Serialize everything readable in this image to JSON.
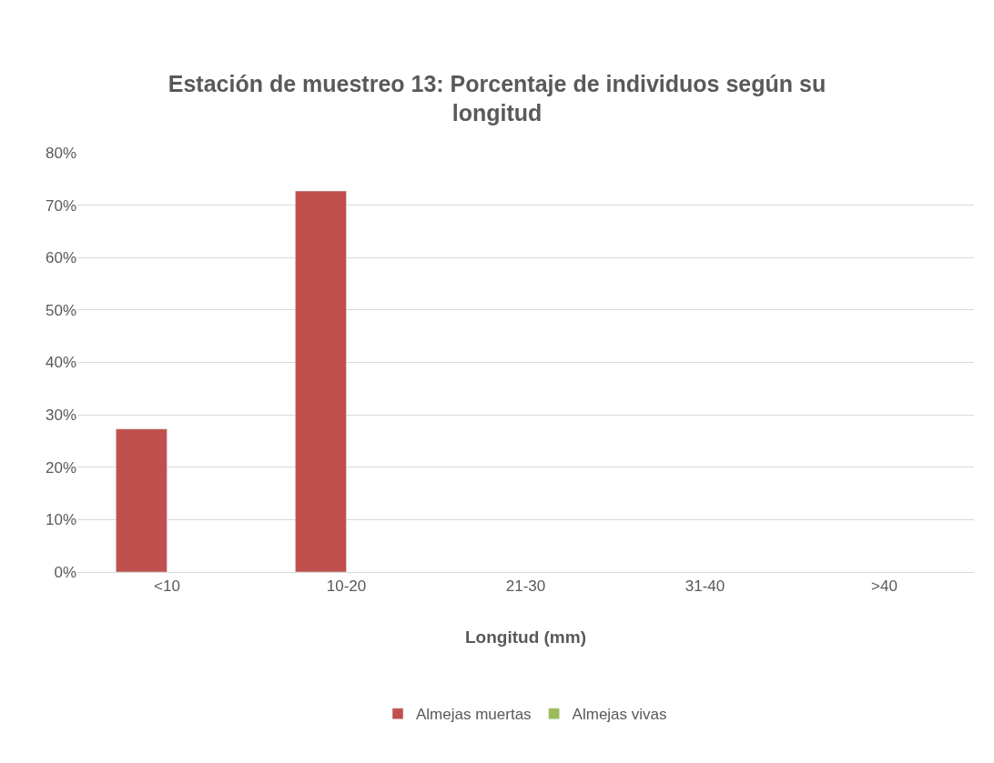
{
  "chart_data": {
    "type": "bar",
    "title": "Estación de muestreo 13: Porcentaje de individuos según su longitud",
    "xlabel": "Longitud (mm)",
    "categories": [
      "<10",
      "10-20",
      "21-30",
      "31-40",
      ">40"
    ],
    "series": [
      {
        "name": "Almejas muertas",
        "color": "#c0504d",
        "values": [
          27.3,
          72.7,
          null,
          null,
          null
        ]
      },
      {
        "name": "Almejas vivas",
        "color": "#9bbb59",
        "values": [
          null,
          null,
          null,
          null,
          null
        ]
      }
    ],
    "ylim": [
      0,
      80
    ],
    "yticks": [
      {
        "value": 0,
        "label": "0%"
      },
      {
        "value": 10,
        "label": "10%"
      },
      {
        "value": 20,
        "label": "20%"
      },
      {
        "value": 30,
        "label": "30%"
      },
      {
        "value": 40,
        "label": "40%"
      },
      {
        "value": 50,
        "label": "50%"
      },
      {
        "value": 60,
        "label": "60%"
      },
      {
        "value": 70,
        "label": "70%"
      },
      {
        "value": 80,
        "label": "80%"
      }
    ],
    "grid": "y",
    "legend": "bottom"
  }
}
